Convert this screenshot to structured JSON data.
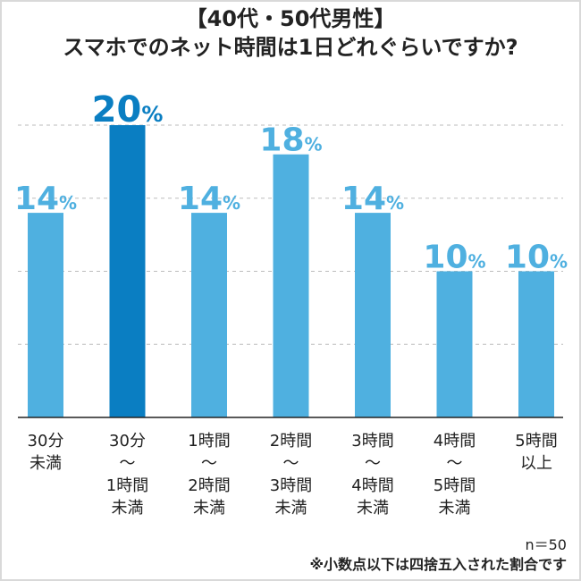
{
  "title_line1": "【40代・50代男性】",
  "title_line2": "スマホでのネット時間は1日どれぐらいですか?",
  "sample_size": "n＝50",
  "note": "※小数点以下は四捨五入された割合です",
  "colors": {
    "bar": "#4fb0e0",
    "bar_highlight": "#0a7ec2",
    "label": "#4fb0e0",
    "label_highlight": "#0a7ec2",
    "grid": "#bbbbbb",
    "axis": "#222222"
  },
  "chart_data": {
    "type": "bar",
    "title": "【40代・50代男性】スマホでのネット時間は1日どれぐらいですか?",
    "categories": [
      [
        "30分",
        "未満"
      ],
      [
        "30分",
        "〜",
        "1時間",
        "未満"
      ],
      [
        "1時間",
        "〜",
        "2時間",
        "未満"
      ],
      [
        "2時間",
        "〜",
        "3時間",
        "未満"
      ],
      [
        "3時間",
        "〜",
        "4時間",
        "未満"
      ],
      [
        "4時間",
        "〜",
        "5時間",
        "未満"
      ],
      [
        "5時間",
        "以上"
      ]
    ],
    "values": [
      14,
      20,
      14,
      18,
      14,
      10,
      10
    ],
    "value_suffix": "%",
    "highlight_index": 1,
    "ylim": [
      0,
      20
    ],
    "grid": true,
    "gridlines": [
      5,
      10,
      15,
      20
    ],
    "xlabel": "",
    "ylabel": ""
  }
}
